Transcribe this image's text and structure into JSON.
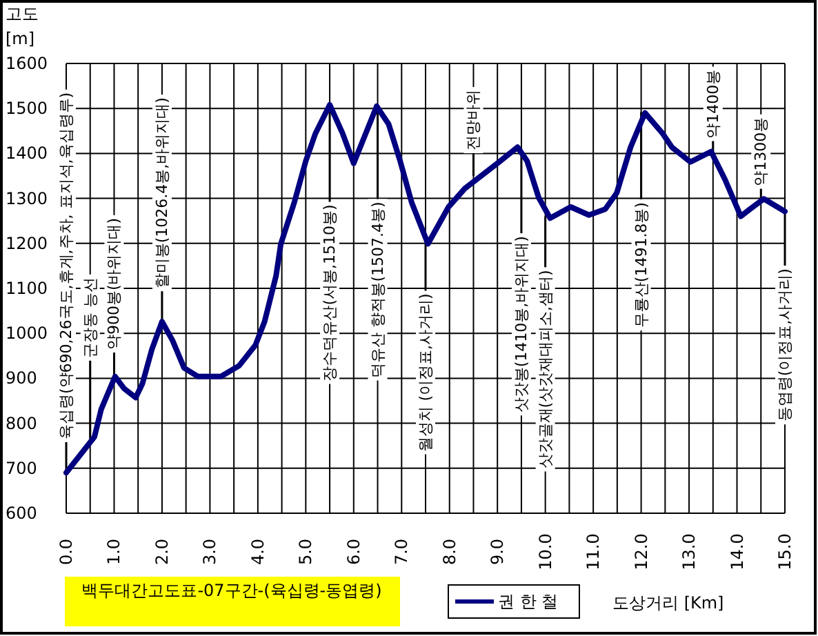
{
  "chart_data": {
    "type": "line",
    "title": "백두대간고도표-07구간-(육십령-동엽령)",
    "ylabel": "고도 [m]",
    "xlabel": "도상거리 [Km]",
    "x": [
      0,
      0.59,
      0.73,
      1.02,
      1.21,
      1.45,
      1.59,
      1.79,
      2.0,
      2.22,
      2.46,
      2.75,
      3.23,
      3.61,
      3.95,
      4.14,
      4.38,
      4.48,
      4.76,
      5.0,
      5.2,
      5.5,
      5.77,
      6.0,
      6.25,
      6.48,
      6.73,
      6.97,
      7.21,
      7.55,
      7.98,
      8.32,
      9.0,
      9.42,
      9.62,
      9.86,
      10.1,
      10.53,
      10.91,
      11.25,
      11.49,
      11.78,
      12.08,
      12.45,
      12.64,
      13.03,
      13.46,
      13.75,
      14.08,
      14.27,
      14.56,
      15.0
    ],
    "series": [
      {
        "name": "권 한 철",
        "color": "#000080",
        "values": [
          690,
          770,
          831,
          904,
          877,
          857,
          888,
          965,
          1026,
          984,
          923,
          904,
          904,
          928,
          974,
          1026,
          1128,
          1199,
          1291,
          1383,
          1444,
          1508,
          1444,
          1378,
          1444,
          1505,
          1465,
          1383,
          1291,
          1199,
          1281,
          1322,
          1378,
          1414,
          1383,
          1302,
          1256,
          1281,
          1263,
          1276,
          1312,
          1414,
          1490,
          1444,
          1414,
          1381,
          1404,
          1342,
          1260,
          1276,
          1299,
          1271
        ]
      }
    ],
    "xlim": [
      0,
      15
    ],
    "ylim": [
      600,
      1600
    ],
    "xticks": [
      {
        "value": 0,
        "label": "0.0"
      },
      {
        "value": 0.5,
        "label": null
      },
      {
        "value": 1,
        "label": "1.0"
      },
      {
        "value": 1.5,
        "label": null
      },
      {
        "value": 2,
        "label": "2.0"
      },
      {
        "value": 2.5,
        "label": null
      },
      {
        "value": 3,
        "label": "3.0"
      },
      {
        "value": 3.5,
        "label": null
      },
      {
        "value": 4,
        "label": "4.0"
      },
      {
        "value": 4.5,
        "label": null
      },
      {
        "value": 5,
        "label": "5.0"
      },
      {
        "value": 5.5,
        "label": null
      },
      {
        "value": 6,
        "label": "6.0"
      },
      {
        "value": 6.5,
        "label": null
      },
      {
        "value": 7,
        "label": "7.0"
      },
      {
        "value": 7.5,
        "label": null
      },
      {
        "value": 8,
        "label": "8.0"
      },
      {
        "value": 8.5,
        "label": null
      },
      {
        "value": 9,
        "label": "9.0"
      },
      {
        "value": 9.5,
        "label": null
      },
      {
        "value": 10,
        "label": "10.0"
      },
      {
        "value": 10.5,
        "label": null
      },
      {
        "value": 11,
        "label": "11.0"
      },
      {
        "value": 11.5,
        "label": null
      },
      {
        "value": 12,
        "label": "12.0"
      },
      {
        "value": 12.5,
        "label": null
      },
      {
        "value": 13,
        "label": "13.0"
      },
      {
        "value": 13.5,
        "label": null
      },
      {
        "value": 14,
        "label": "14.0"
      },
      {
        "value": 14.5,
        "label": null
      },
      {
        "value": 15,
        "label": "15.0"
      }
    ],
    "yticks": [
      600,
      700,
      800,
      900,
      1000,
      1100,
      1200,
      1300,
      1400,
      1500,
      1600
    ],
    "grid": true,
    "legend": "bottom",
    "marker": "none",
    "line_style": "solid",
    "annotations": [
      {
        "text": "육십령(약690,26국도,휴게,주차,  표지석,육십령루)",
        "x": 0,
        "y": 690
      },
      {
        "text": "군장동 능선",
        "x": 0.5,
        "y": 765
      },
      {
        "text": "약900봉(바위지대)",
        "x": 1.0,
        "y": 900
      },
      {
        "text": "할미봉(1026.4봉,바위지대)",
        "x": 2.0,
        "y": 1026.4
      },
      {
        "text": "장수덕유산(서봉,1510봉)",
        "x": 5.5,
        "y": 1510
      },
      {
        "text": "덕유산 향적봉(1507.4봉)",
        "x": 6.5,
        "y": 1507.4
      },
      {
        "text": "월성치 (이정표,사거리)",
        "x": 7.5,
        "y": 1200
      },
      {
        "text": "전망바위",
        "x": 8.5,
        "y": 1350
      },
      {
        "text": "삿갓봉(1410봉,바위지대)",
        "x": 9.5,
        "y": 1410
      },
      {
        "text": "삿갓골재(삿갓재대피소,샘터)",
        "x": 10.0,
        "y": 1260
      },
      {
        "text": "무룡산(1491.8봉)",
        "x": 12.0,
        "y": 1491.8
      },
      {
        "text": "약1400봉",
        "x": 13.5,
        "y": 1400
      },
      {
        "text": "약1300봉",
        "x": 14.5,
        "y": 1300
      },
      {
        "text": "동엽령(이정표,사거리)",
        "x": 15.0,
        "y": 1271
      }
    ]
  }
}
